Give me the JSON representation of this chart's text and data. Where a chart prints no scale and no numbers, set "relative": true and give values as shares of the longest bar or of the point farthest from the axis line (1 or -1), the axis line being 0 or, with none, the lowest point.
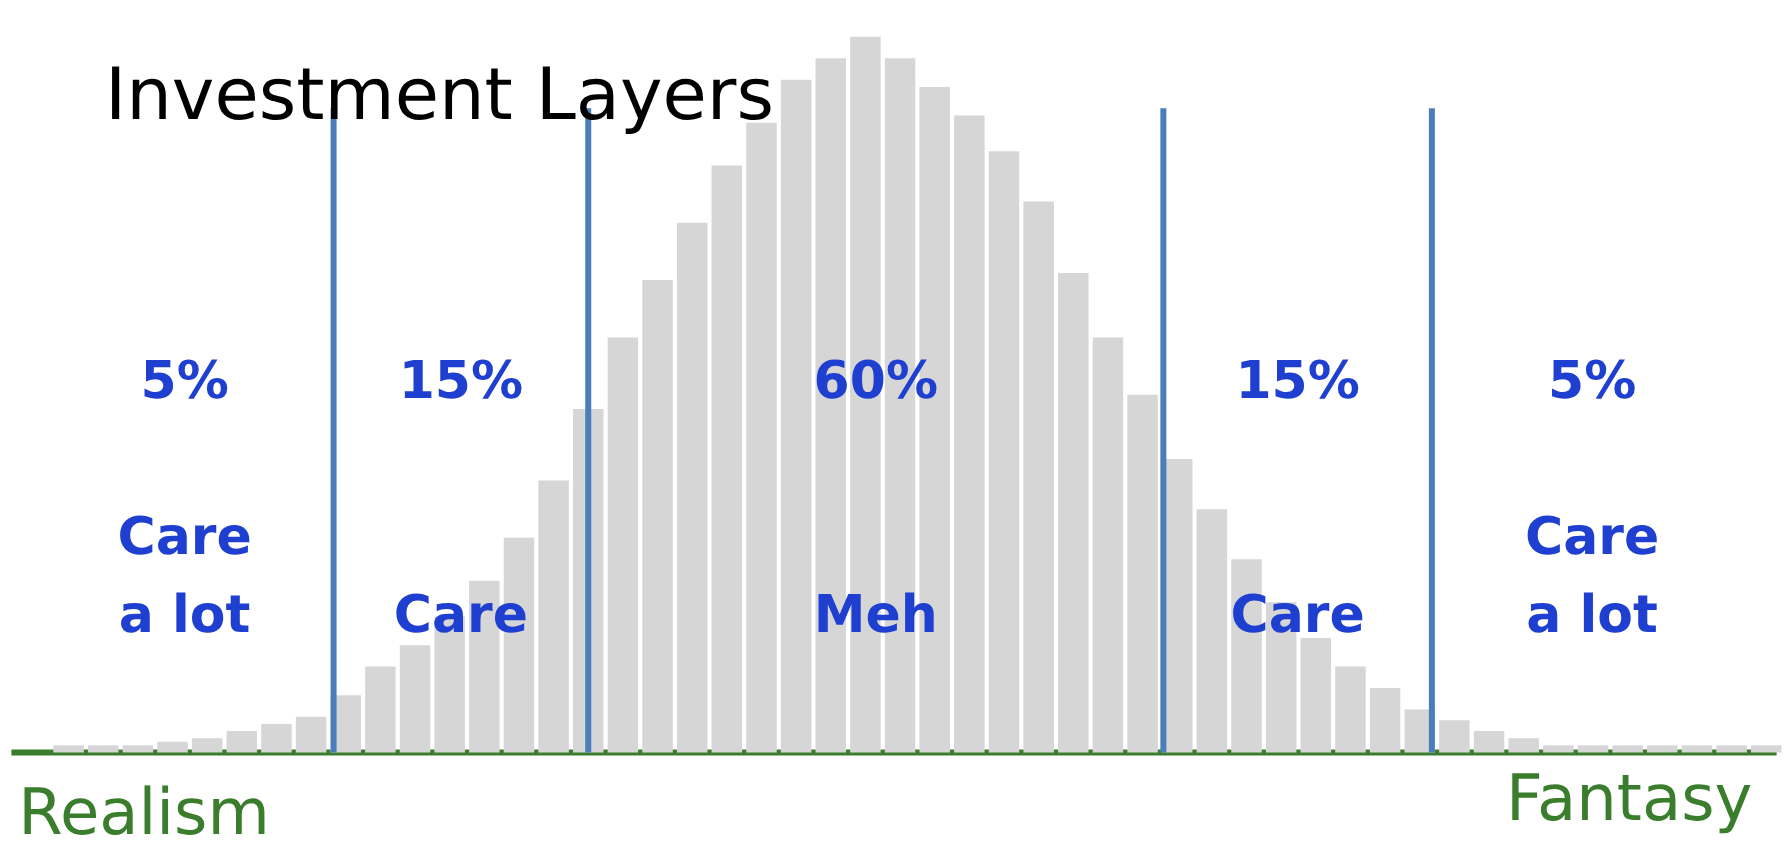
{
  "chart_data": {
    "type": "bar",
    "title": "Investment Layers",
    "relative": true,
    "color": "#d6d6d6",
    "categories": [
      null,
      null,
      null,
      null,
      null,
      null,
      null,
      null,
      null,
      null,
      null,
      null,
      null,
      null,
      null,
      null,
      null,
      null,
      null,
      null,
      null,
      null,
      null,
      null,
      null,
      null,
      null,
      null,
      null,
      null,
      null,
      null,
      null,
      null,
      null,
      null,
      null,
      null,
      null,
      null,
      null,
      null,
      null,
      null,
      null,
      null,
      null,
      null,
      null,
      null
    ],
    "values": [
      0.01,
      0.01,
      0.01,
      0.015,
      0.02,
      0.03,
      0.04,
      0.05,
      0.08,
      0.12,
      0.15,
      0.19,
      0.24,
      0.3,
      0.38,
      0.48,
      0.58,
      0.66,
      0.74,
      0.82,
      0.88,
      0.94,
      0.97,
      1,
      0.97,
      0.93,
      0.89,
      0.84,
      0.77,
      0.67,
      0.58,
      0.5,
      0.41,
      0.34,
      0.27,
      0.21,
      0.16,
      0.12,
      0.09,
      0.06,
      0.045,
      0.03,
      0.02,
      0.01,
      0.01,
      0.01,
      0.01,
      0.01,
      0.01,
      0.01
    ],
    "annotations": [
      "5%\n\nCare\na lot",
      "15%\n\n\nCare",
      "60%\n\n\nMeh",
      "15%\n\n\nCare",
      "5%\n\nCare\na lot",
      "Realism",
      "Fantasy"
    ]
  }
}
